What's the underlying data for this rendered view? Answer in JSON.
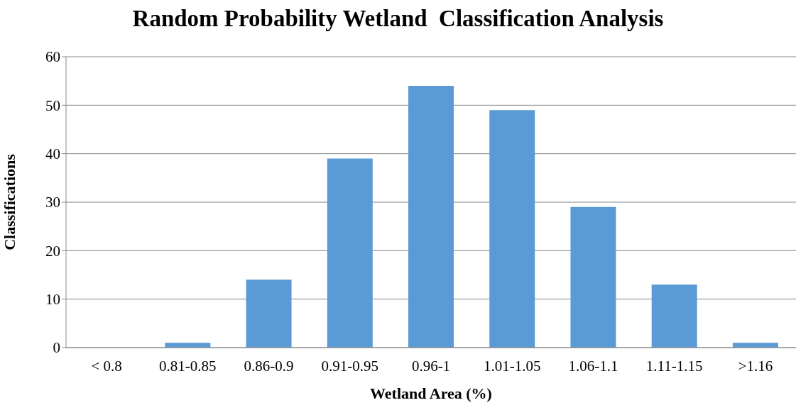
{
  "chart_data": {
    "type": "bar",
    "title": "Random Probability Wetland  Classification Analysis",
    "xlabel": "Wetland Area (%)",
    "ylabel": "Classifications",
    "categories": [
      "< 0.8",
      "0.81-0.85",
      "0.86-0.9",
      "0.91-0.95",
      "0.96-1",
      "1.01-1.05",
      "1.06-1.1",
      "1.11-1.15",
      ">1.16"
    ],
    "values": [
      0,
      1,
      14,
      39,
      54,
      49,
      29,
      13,
      1
    ],
    "color": "#5b9bd5",
    "ylim": [
      0,
      60
    ],
    "yticks": [
      0,
      10,
      20,
      30,
      40,
      50,
      60
    ],
    "grid": "y"
  }
}
